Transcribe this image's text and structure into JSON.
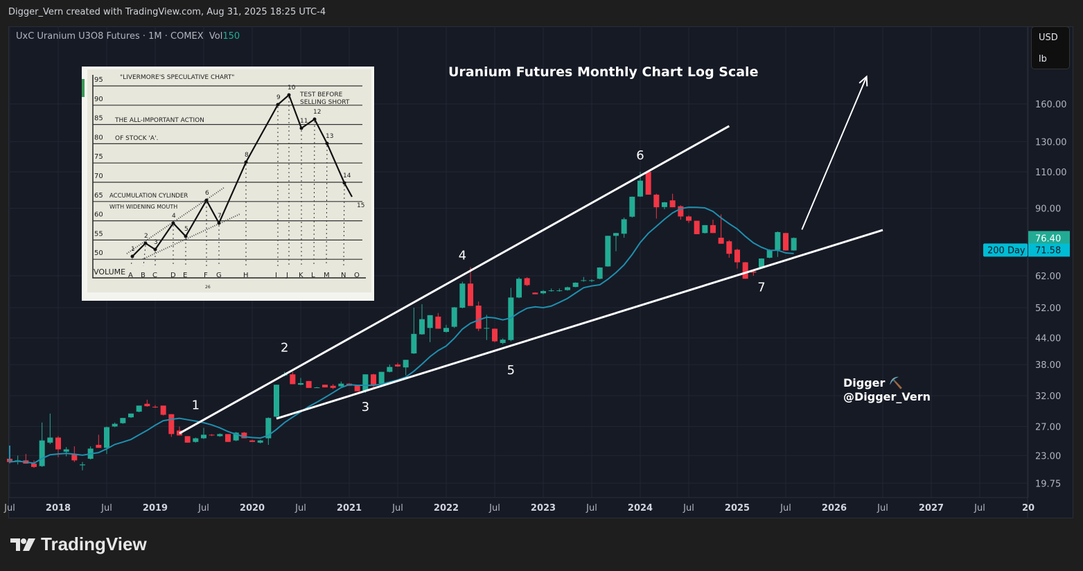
{
  "header": {
    "attribution": "Digger_Vern created with TradingView.com, Aug 31, 2025 18:25 UTC-4"
  },
  "legend": {
    "symbol": "UxC Uranium U3O8 Futures · 1M · COMEX",
    "vol_label": "Vol",
    "vol_value": "150"
  },
  "units": {
    "currency": "USD",
    "unit": "lb"
  },
  "watermark": {
    "line1": "Digger ⛏️",
    "line2": "@Digger_Vern"
  },
  "logo": {
    "text": "TradingView"
  },
  "colors": {
    "up": "#22ab94",
    "down": "#f23645",
    "ma": "#1f8fae",
    "ma_badge": "#00bcd4",
    "background": "#161a25",
    "annotation": "#ffffff"
  },
  "inset": {
    "title": "\"LIVERMORE'S SPECULATIVE CHART\"",
    "note1": "TEST BEFORE",
    "note2": "SELLING SHORT",
    "caption1": "THE ALL-IMPORTANT ACTION",
    "caption2": "OF STOCK 'A'.",
    "cyl1": "ACCUMULATION CYLINDER",
    "cyl2": "WITH WIDENING MOUTH",
    "volume": "VOLUME",
    "page": "26",
    "price_labels": [
      "95",
      "90",
      "85",
      "80",
      "75",
      "70",
      "65",
      "60",
      "55",
      "50"
    ],
    "points": [
      "1",
      "2",
      "3",
      "4",
      "5",
      "6",
      "7",
      "8",
      "9",
      "10",
      "11",
      "12",
      "13",
      "14",
      "15"
    ],
    "volume_letters": [
      "A",
      "B",
      "C",
      "D",
      "E",
      "F",
      "G",
      "H",
      "I",
      "J",
      "K",
      "L",
      "M",
      "N",
      "O"
    ]
  },
  "chart_data": {
    "type": "candlestick",
    "title": "Uranium Futures Monthly Chart Log Scale",
    "scale": "log",
    "grid": true,
    "ylim": [
      18.3,
      245
    ],
    "y_ticks": [
      "160.00",
      "130.00",
      "110.00",
      "90.00",
      "62.00",
      "52.00",
      "44.00",
      "38.00",
      "32.00",
      "27.00",
      "23.00",
      "19.75"
    ],
    "x_ticks": [
      {
        "label": "Jul",
        "date": "2017-07"
      },
      {
        "label": "2018",
        "date": "2018-01"
      },
      {
        "label": "Jul",
        "date": "2018-07"
      },
      {
        "label": "2019",
        "date": "2019-01"
      },
      {
        "label": "Jul",
        "date": "2019-07"
      },
      {
        "label": "2020",
        "date": "2020-01"
      },
      {
        "label": "Jul",
        "date": "2020-07"
      },
      {
        "label": "2021",
        "date": "2021-01"
      },
      {
        "label": "Jul",
        "date": "2021-07"
      },
      {
        "label": "2022",
        "date": "2022-01"
      },
      {
        "label": "Jul",
        "date": "2022-07"
      },
      {
        "label": "2023",
        "date": "2023-01"
      },
      {
        "label": "Jul",
        "date": "2023-07"
      },
      {
        "label": "2024",
        "date": "2024-01"
      },
      {
        "label": "Jul",
        "date": "2024-07"
      },
      {
        "label": "2025",
        "date": "2025-01"
      },
      {
        "label": "Jul",
        "date": "2025-07"
      },
      {
        "label": "2026",
        "date": "2026-01"
      },
      {
        "label": "Jul",
        "date": "2026-07"
      },
      {
        "label": "2027",
        "date": "2027-01"
      },
      {
        "label": "Jul",
        "date": "2027-07"
      },
      {
        "label": "20",
        "date": "2028-01"
      }
    ],
    "last_price": "76.40",
    "ma": {
      "name": "200 Day",
      "last_value": "71.58"
    },
    "candles": [
      [
        "2017-07",
        22.6,
        23.2,
        22.0,
        22.2
      ],
      [
        "2017-08",
        22.3,
        23.0,
        21.9,
        22.4
      ],
      [
        "2017-09",
        22.4,
        23.2,
        22.0,
        22.0
      ],
      [
        "2017-10",
        22.0,
        22.4,
        21.5,
        21.6
      ],
      [
        "2017-11",
        21.7,
        27.6,
        21.6,
        25.0
      ],
      [
        "2017-12",
        24.7,
        29.0,
        24.5,
        25.4
      ],
      [
        "2018-01",
        25.4,
        25.6,
        22.8,
        23.8
      ],
      [
        "2018-02",
        23.5,
        24.1,
        22.9,
        23.8
      ],
      [
        "2018-03",
        23.2,
        24.2,
        22.2,
        22.4
      ],
      [
        "2018-04",
        21.8,
        22.2,
        21.2,
        21.9
      ],
      [
        "2018-05",
        22.6,
        24.2,
        22.5,
        23.9
      ],
      [
        "2018-06",
        24.4,
        25.8,
        24.0,
        24.0
      ],
      [
        "2018-07",
        24.0,
        27.0,
        23.2,
        26.9
      ],
      [
        "2018-08",
        27.0,
        27.6,
        26.9,
        27.4
      ],
      [
        "2018-09",
        27.5,
        28.3,
        27.4,
        28.3
      ],
      [
        "2018-10",
        28.4,
        29.0,
        28.3,
        29.0
      ],
      [
        "2018-11",
        29.3,
        30.3,
        29.2,
        30.3
      ],
      [
        "2018-12",
        30.6,
        31.3,
        30.1,
        30.2
      ],
      [
        "2019-01",
        30.1,
        30.4,
        29.9,
        30.0
      ],
      [
        "2019-02",
        30.3,
        30.3,
        28.7,
        28.8
      ],
      [
        "2019-03",
        28.9,
        28.9,
        25.5,
        25.9
      ],
      [
        "2019-04",
        26.4,
        27.0,
        25.7,
        25.7
      ],
      [
        "2019-05",
        25.6,
        25.6,
        24.7,
        24.7
      ],
      [
        "2019-06",
        24.8,
        25.4,
        24.7,
        25.3
      ],
      [
        "2019-07",
        25.3,
        26.8,
        25.2,
        25.8
      ],
      [
        "2019-08",
        25.8,
        25.9,
        25.6,
        25.7
      ],
      [
        "2019-09",
        25.6,
        26.0,
        25.5,
        25.9
      ],
      [
        "2019-10",
        25.9,
        25.9,
        24.8,
        24.8
      ],
      [
        "2019-11",
        25.0,
        26.2,
        24.9,
        26.1
      ],
      [
        "2019-12",
        26.1,
        26.2,
        25.3,
        25.3
      ],
      [
        "2020-01",
        25.0,
        25.1,
        24.8,
        24.8
      ],
      [
        "2020-02",
        24.7,
        25.1,
        24.6,
        25.0
      ],
      [
        "2020-03",
        25.3,
        28.4,
        24.4,
        28.3
      ],
      [
        "2020-04",
        28.5,
        34.0,
        28.4,
        34.0
      ],
      [
        "2020-05",
        35.8,
        36.5,
        35.6,
        36.0
      ],
      [
        "2020-06",
        36.0,
        36.5,
        34.1,
        34.1
      ],
      [
        "2020-07",
        34.0,
        35.3,
        33.9,
        34.3
      ],
      [
        "2020-08",
        34.7,
        34.7,
        33.4,
        33.4
      ],
      [
        "2020-09",
        33.5,
        33.6,
        33.4,
        33.5
      ],
      [
        "2020-10",
        34.0,
        34.0,
        33.5,
        33.5
      ],
      [
        "2020-11",
        33.8,
        34.1,
        33.2,
        33.4
      ],
      [
        "2020-12",
        33.7,
        34.6,
        33.6,
        34.2
      ],
      [
        "2021-01",
        34.2,
        34.3,
        33.8,
        33.8
      ],
      [
        "2021-02",
        33.9,
        33.9,
        32.8,
        32.8
      ],
      [
        "2021-03",
        32.8,
        36.0,
        32.5,
        36.0
      ],
      [
        "2021-04",
        36.0,
        36.1,
        33.4,
        33.9
      ],
      [
        "2021-05",
        34.2,
        36.5,
        34.1,
        36.5
      ],
      [
        "2021-06",
        36.5,
        38.0,
        36.4,
        37.5
      ],
      [
        "2021-07",
        38.0,
        38.4,
        37.5,
        37.6
      ],
      [
        "2021-08",
        37.4,
        39.0,
        35.8,
        39.0
      ],
      [
        "2021-09",
        40.4,
        52.0,
        40.3,
        45.0
      ],
      [
        "2021-10",
        44.9,
        53.0,
        44.8,
        48.8
      ],
      [
        "2021-11",
        46.5,
        49.9,
        43.0,
        49.9
      ],
      [
        "2021-12",
        49.5,
        50.5,
        46.3,
        46.3
      ],
      [
        "2022-01",
        45.5,
        47.3,
        45.3,
        46.5
      ],
      [
        "2022-02",
        46.8,
        52.2,
        46.5,
        52.1
      ],
      [
        "2022-03",
        52.0,
        60.0,
        51.8,
        59.4
      ],
      [
        "2022-04",
        59.4,
        65.0,
        52.5,
        52.5
      ],
      [
        "2022-05",
        52.6,
        53.8,
        45.7,
        46.3
      ],
      [
        "2022-06",
        46.5,
        50.0,
        43.5,
        46.5
      ],
      [
        "2022-07",
        46.3,
        46.4,
        43.0,
        43.2
      ],
      [
        "2022-08",
        42.8,
        43.9,
        42.5,
        43.6
      ],
      [
        "2022-09",
        43.5,
        58.0,
        43.2,
        55.0
      ],
      [
        "2022-10",
        55.0,
        61.5,
        54.8,
        61.0
      ],
      [
        "2022-11",
        61.2,
        61.5,
        58.6,
        58.9
      ],
      [
        "2022-12",
        56.5,
        56.6,
        56.0,
        56.0
      ],
      [
        "2023-01",
        56.3,
        57.3,
        56.0,
        57.0
      ],
      [
        "2023-02",
        57.2,
        57.8,
        56.8,
        57.2
      ],
      [
        "2023-03",
        57.2,
        57.8,
        56.8,
        57.2
      ],
      [
        "2023-04",
        57.3,
        58.4,
        57.1,
        58.2
      ],
      [
        "2023-05",
        58.3,
        59.8,
        58.2,
        59.7
      ],
      [
        "2023-06",
        60.3,
        61.6,
        60.0,
        60.5
      ],
      [
        "2023-07",
        60.4,
        60.8,
        59.9,
        60.5
      ],
      [
        "2023-08",
        61.0,
        65.0,
        60.8,
        64.9
      ],
      [
        "2023-09",
        65.3,
        77.3,
        65.2,
        77.3
      ],
      [
        "2023-10",
        77.3,
        78.6,
        71.0,
        78.5
      ],
      [
        "2023-11",
        78.2,
        85.5,
        76.5,
        84.7
      ],
      [
        "2023-12",
        85.9,
        96.0,
        85.5,
        95.9
      ],
      [
        "2024-01",
        96.0,
        110.0,
        95.8,
        104.8
      ],
      [
        "2024-02",
        110.0,
        110.5,
        97.0,
        97.0
      ],
      [
        "2024-03",
        97.0,
        97.5,
        85.0,
        90.5
      ],
      [
        "2024-04",
        90.6,
        93.2,
        89.5,
        93.0
      ],
      [
        "2024-05",
        94.0,
        97.5,
        90.5,
        90.5
      ],
      [
        "2024-06",
        91.0,
        91.5,
        84.5,
        86.0
      ],
      [
        "2024-07",
        86.0,
        86.5,
        83.0,
        84.0
      ],
      [
        "2024-08",
        84.0,
        84.0,
        78.0,
        78.0
      ],
      [
        "2024-09",
        78.5,
        82.0,
        78.3,
        82.0
      ],
      [
        "2024-10",
        82.0,
        84.5,
        78.5,
        78.5
      ],
      [
        "2024-11",
        76.5,
        87.0,
        74.0,
        74.0
      ],
      [
        "2024-12",
        75.0,
        75.5,
        68.5,
        70.0
      ],
      [
        "2025-01",
        71.6,
        72.0,
        64.5,
        66.8
      ],
      [
        "2025-02",
        66.8,
        66.9,
        61.0,
        61.0
      ],
      [
        "2025-03",
        63.5,
        63.8,
        62.0,
        63.1
      ],
      [
        "2025-04",
        65.0,
        68.3,
        64.8,
        68.2
      ],
      [
        "2025-05",
        68.5,
        71.8,
        68.3,
        71.5
      ],
      [
        "2025-06",
        71.5,
        79.2,
        68.8,
        78.9
      ],
      [
        "2025-07",
        78.5,
        78.6,
        71.3,
        71.3
      ],
      [
        "2025-08",
        71.3,
        76.6,
        71.2,
        76.4
      ]
    ],
    "candle_fields": [
      "date",
      "open",
      "high",
      "low",
      "close"
    ],
    "trendlines": [
      {
        "name": "upper",
        "start": {
          "date": "2019-04",
          "price": 26.0
        },
        "end": {
          "date": "2024-12",
          "price": 141.6
        }
      },
      {
        "name": "lower",
        "start": {
          "date": "2020-04",
          "price": 28.2
        },
        "end": {
          "date": "2026-07",
          "price": 79.8
        }
      }
    ],
    "arrow": {
      "start": {
        "date": "2025-09",
        "price": 80
      },
      "end": {
        "date": "2026-05",
        "price": 186
      }
    },
    "wave_labels": [
      {
        "label": "1",
        "date": "2019-06",
        "price": 30.5
      },
      {
        "label": "2",
        "date": "2020-05",
        "price": 41.9
      },
      {
        "label": "3",
        "date": "2021-03",
        "price": 30.2
      },
      {
        "label": "4",
        "date": "2022-03",
        "price": 69.7
      },
      {
        "label": "5",
        "date": "2022-09",
        "price": 37.0
      },
      {
        "label": "6",
        "date": "2024-01",
        "price": 121
      },
      {
        "label": "7",
        "date": "2025-04",
        "price": 58.4
      }
    ]
  }
}
